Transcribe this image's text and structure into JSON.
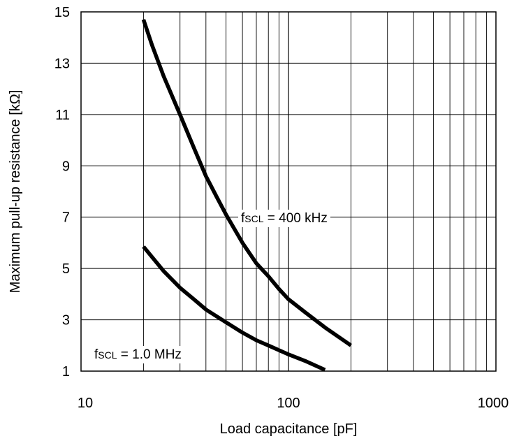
{
  "chart_data": {
    "type": "line",
    "xlabel": "Load capacitance [pF]",
    "ylabel": "Maximum pull-up resistance [kΩ]",
    "xscale": "log",
    "xlim": [
      10,
      1000
    ],
    "ylim": [
      1,
      15
    ],
    "xticks": [
      10,
      100,
      1000
    ],
    "xtick_labels": [
      "10",
      "100",
      "1000"
    ],
    "yticks": [
      1,
      3,
      5,
      7,
      9,
      11,
      13,
      15
    ],
    "ytick_labels": [
      "1",
      "3",
      "5",
      "7",
      "9",
      "11",
      "13",
      "15"
    ],
    "grid": true,
    "series": [
      {
        "id": "400khz",
        "x": [
          20,
          22,
          25,
          30,
          35,
          40,
          45,
          50,
          60,
          70,
          80,
          90,
          100,
          120,
          150,
          200
        ],
        "y": [
          14.7,
          13.7,
          12.5,
          11.0,
          9.7,
          8.6,
          7.8,
          7.1,
          6.0,
          5.2,
          4.7,
          4.2,
          3.8,
          3.3,
          2.7,
          2.0
        ]
      },
      {
        "id": "1mhz",
        "x": [
          20,
          25,
          30,
          35,
          40,
          50,
          60,
          70,
          80,
          100,
          120,
          150
        ],
        "y": [
          5.85,
          4.9,
          4.25,
          3.8,
          3.4,
          2.9,
          2.5,
          2.2,
          2.0,
          1.65,
          1.4,
          1.05
        ]
      }
    ],
    "annotations": [
      {
        "series": "400khz",
        "prefix": "f",
        "sub": "SCL",
        "suffix": " = 400 kHz"
      },
      {
        "series": "1mhz",
        "prefix": "f",
        "sub": "SCL",
        "suffix": " = 1.0 MHz"
      }
    ]
  }
}
